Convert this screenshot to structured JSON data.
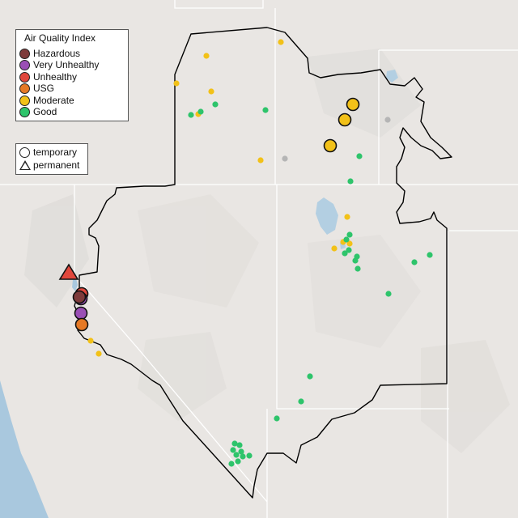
{
  "legend": {
    "title": "Air Quality Index",
    "categories": [
      {
        "label": "Hazardous",
        "color": "#7e3b3b"
      },
      {
        "label": "Very Unhealthy",
        "color": "#9a4fb5"
      },
      {
        "label": "Unhealthy",
        "color": "#e0473c"
      },
      {
        "label": "USG",
        "color": "#e57925"
      },
      {
        "label": "Moderate",
        "color": "#f2c118"
      },
      {
        "label": "Good",
        "color": "#2ec46b"
      }
    ],
    "types": [
      {
        "label": "temporary",
        "symbol": "circle"
      },
      {
        "label": "permanent",
        "symbol": "triangle"
      }
    ]
  },
  "colors": {
    "land": "#e9e6e3",
    "water": "#a9c8de",
    "boundary": "#000000",
    "state_line": "#ffffff",
    "unknown": "#b5b5b5"
  }
}
